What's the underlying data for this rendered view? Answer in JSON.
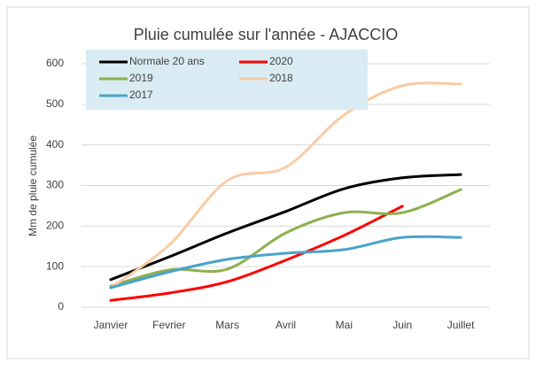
{
  "chart_data": {
    "type": "line",
    "title": "Pluie cumulée sur l'année - AJACCIO",
    "y_label": "Mm de pluie cumulée",
    "categories": [
      "Janvier",
      "Fevrier",
      "Mars",
      "Avril",
      "Mai",
      "Juin",
      "Juillet"
    ],
    "series": [
      {
        "name": "Normale 20 ans",
        "color": "#000000",
        "values": [
          68,
          124,
          183,
          236,
          292,
          319,
          327
        ]
      },
      {
        "name": "2020",
        "color": "#ff0000",
        "values": [
          17,
          35,
          63,
          116,
          177,
          249,
          null
        ]
      },
      {
        "name": "2019",
        "color": "#8db04e",
        "values": [
          52,
          92,
          94,
          183,
          233,
          233,
          290
        ]
      },
      {
        "name": "2018",
        "color": "#f9cba4",
        "values": [
          48,
          153,
          312,
          345,
          474,
          546,
          550
        ]
      },
      {
        "name": "2017",
        "color": "#4aa3c9",
        "values": [
          48,
          87,
          118,
          133,
          142,
          172,
          172
        ]
      }
    ],
    "ylim": [
      0,
      600
    ],
    "yticks": [
      0,
      100,
      200,
      300,
      400,
      500,
      600
    ],
    "grid": true
  }
}
